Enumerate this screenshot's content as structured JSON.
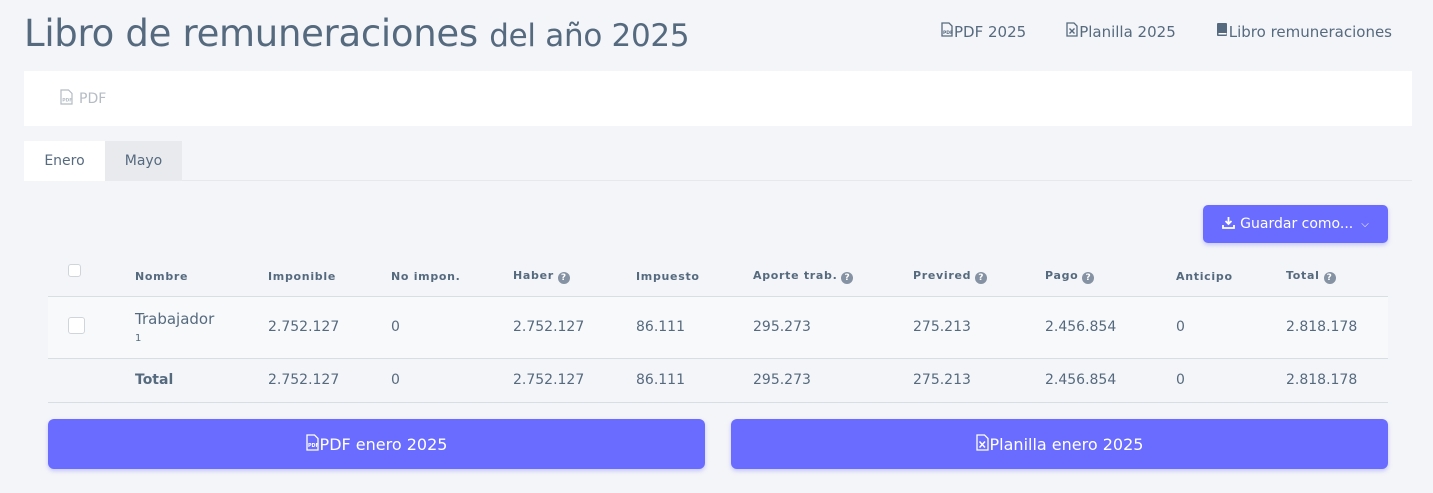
{
  "header": {
    "title": "Libro de remuneraciones",
    "subtitle": "del año 2025",
    "links": [
      {
        "label": "PDF 2025",
        "icon": "file-pdf-icon"
      },
      {
        "label": "Planilla 2025",
        "icon": "file-excel-icon"
      },
      {
        "label": "Libro remuneraciones",
        "icon": "book-icon"
      }
    ]
  },
  "toolbar": {
    "pdf_label": "PDF"
  },
  "tabs": [
    {
      "label": "Enero",
      "active": true
    },
    {
      "label": "Mayo",
      "active": false
    }
  ],
  "save_menu": {
    "label": "Guardar como..."
  },
  "table": {
    "columns": [
      "Nombre",
      "Imponible",
      "No impon.",
      "Haber",
      "Impuesto",
      "Aporte trab.",
      "Previred",
      "Pago",
      "Anticipo",
      "Total"
    ],
    "rows": [
      {
        "name": "Trabajador",
        "id": "1",
        "imponible": "2.752.127",
        "no_impon": "0",
        "haber": "2.752.127",
        "impuesto": "86.111",
        "aporte": "295.273",
        "previred": "275.213",
        "pago": "2.456.854",
        "anticipo": "0",
        "total": "2.818.178"
      }
    ],
    "totals": {
      "label": "Total",
      "imponible": "2.752.127",
      "no_impon": "0",
      "haber": "2.752.127",
      "impuesto": "86.111",
      "aporte": "295.273",
      "previred": "275.213",
      "pago": "2.456.854",
      "anticipo": "0",
      "total": "2.818.178"
    }
  },
  "buttons": {
    "pdf_month": "PDF enero 2025",
    "planilla_month": "Planilla enero 2025"
  },
  "colors": {
    "accent": "#696cff",
    "text": "#566a7f",
    "background": "#f4f5f8"
  }
}
